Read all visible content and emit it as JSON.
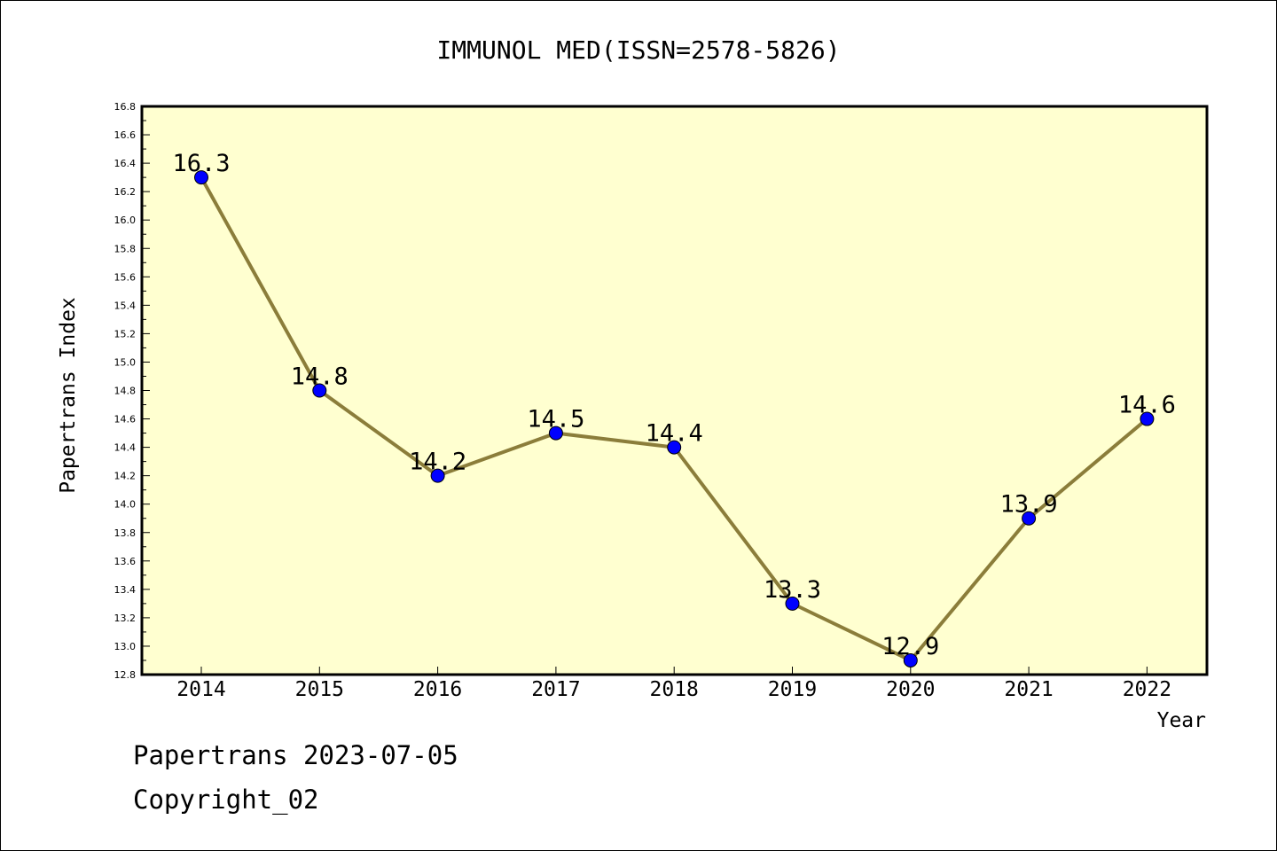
{
  "chart_data": {
    "type": "line",
    "title": "IMMUNOL MED(ISSN=2578-5826)",
    "xlabel": "Year",
    "ylabel": "Papertrans Index",
    "categories": [
      "2014",
      "2015",
      "2016",
      "2017",
      "2018",
      "2019",
      "2020",
      "2021",
      "2022"
    ],
    "values": [
      16.3,
      14.8,
      14.2,
      14.5,
      14.4,
      13.3,
      12.9,
      13.9,
      14.6
    ],
    "data_labels": [
      "16.3",
      "14.8",
      "14.2",
      "14.5",
      "14.4",
      "13.3",
      "12.9",
      "13.9",
      "14.6"
    ],
    "ylim": [
      12.8,
      16.8
    ],
    "y_ticks": [
      "12.8",
      "13.0",
      "13.2",
      "13.4",
      "13.6",
      "13.8",
      "14.0",
      "14.2",
      "14.4",
      "14.6",
      "14.8",
      "15.0",
      "15.2",
      "15.4",
      "15.6",
      "15.8",
      "16.0",
      "16.2",
      "16.4",
      "16.6",
      "16.8"
    ],
    "grid": false,
    "colors": {
      "plot_background": "#ffffd0",
      "line": "#8b7d3a",
      "marker": "#0000ff"
    }
  },
  "footer": {
    "source": "Papertrans 2023-07-05",
    "copyright": "Copyright_02"
  }
}
